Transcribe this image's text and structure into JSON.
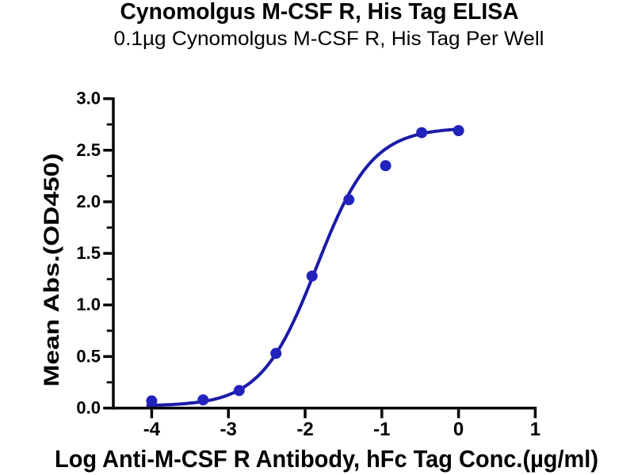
{
  "chart_data": {
    "type": "scatter",
    "title": "Cynomolgus M-CSF R, His Tag ELISA",
    "subtitle": "0.1µg Cynomolgus M-CSF R, His Tag Per Well",
    "xlabel": "Log Anti-M-CSF R Antibody, hFc Tag Conc.(µg/ml)",
    "ylabel": "Mean Abs.(OD450)",
    "x": [
      -4.0,
      -3.33,
      -2.86,
      -2.38,
      -1.91,
      -1.43,
      -0.95,
      -0.48,
      0.0
    ],
    "y": [
      0.07,
      0.08,
      0.17,
      0.53,
      1.28,
      2.02,
      2.35,
      2.67,
      2.69
    ],
    "x_tick_values": [
      -4,
      -3,
      -2,
      -1,
      0,
      1
    ],
    "x_tick_labels": [
      "-4",
      "-3",
      "-2",
      "-1",
      "0",
      "1"
    ],
    "y_tick_values": [
      0,
      0.5,
      1,
      1.5,
      2,
      2.5,
      3
    ],
    "y_tick_labels": [
      "0.0",
      "0.5",
      "1.0",
      "1.5",
      "2.0",
      "2.5",
      "3.0"
    ],
    "y_minor_tick_values": [
      0.25,
      0.75,
      1.25,
      1.75,
      2.25,
      2.75
    ],
    "xlim": [
      -4.5,
      1.02
    ],
    "ylim": [
      0,
      3
    ],
    "grid": false,
    "legend": false,
    "fit": {
      "model": "4PL",
      "bottom": 0.02,
      "top": 2.72,
      "logEC50": -1.85,
      "hillslope": 1.2,
      "draw_range": [
        -4.05,
        0.0
      ]
    },
    "colors": {
      "curve": "#1b1ba8",
      "marker": "#2222bd",
      "axis": "#000000",
      "text": "#000000"
    }
  }
}
